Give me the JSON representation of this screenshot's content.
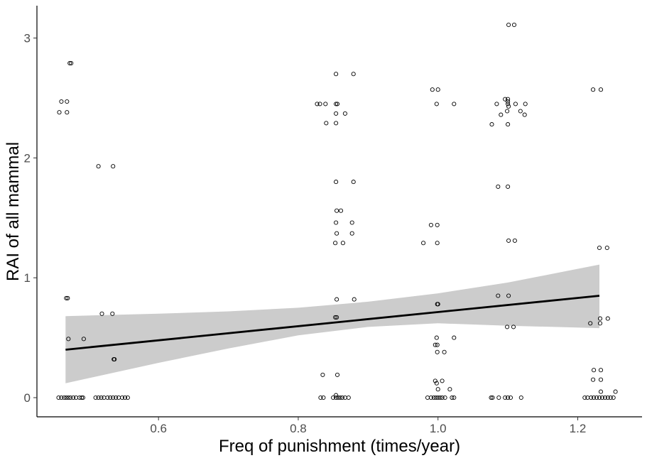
{
  "chart_data": {
    "type": "scatter",
    "title": "",
    "xlabel": "Freq of punishment (times/year)",
    "ylabel": "RAI of all mammal",
    "xlim": [
      0.426,
      1.292
    ],
    "ylim": [
      -0.16,
      3.27
    ],
    "x_ticks": [
      0.6,
      0.8,
      1.0,
      1.2
    ],
    "x_tick_labels": [
      "0.6",
      "0.8",
      "1.0",
      "1.2"
    ],
    "y_ticks": [
      0,
      1,
      2,
      3
    ],
    "y_tick_labels": [
      "0",
      "1",
      "2",
      "3"
    ],
    "grid": false,
    "legend": "none",
    "colors": {
      "point_stroke": "#000000",
      "line": "#000000",
      "band": "#cccccc",
      "axis": "#000000"
    },
    "points": [
      [
        0.458,
        2.38
      ],
      [
        0.461,
        2.47
      ],
      [
        0.469,
        2.47
      ],
      [
        0.469,
        2.38
      ],
      [
        0.473,
        2.79
      ],
      [
        0.475,
        2.79
      ],
      [
        0.468,
        0.83
      ],
      [
        0.47,
        0.83
      ],
      [
        0.471,
        0.49
      ],
      [
        0.493,
        0.49
      ],
      [
        0.457,
        0.0
      ],
      [
        0.461,
        0.0
      ],
      [
        0.465,
        0.0
      ],
      [
        0.468,
        0.0
      ],
      [
        0.471,
        0.0
      ],
      [
        0.474,
        0.0
      ],
      [
        0.478,
        0.0
      ],
      [
        0.482,
        0.0
      ],
      [
        0.487,
        0.0
      ],
      [
        0.49,
        0.0
      ],
      [
        0.492,
        0.0
      ],
      [
        0.514,
        1.93
      ],
      [
        0.535,
        1.93
      ],
      [
        0.519,
        0.7
      ],
      [
        0.534,
        0.7
      ],
      [
        0.536,
        0.32
      ],
      [
        0.537,
        0.32
      ],
      [
        0.51,
        0.0
      ],
      [
        0.514,
        0.0
      ],
      [
        0.518,
        0.0
      ],
      [
        0.522,
        0.0
      ],
      [
        0.527,
        0.0
      ],
      [
        0.531,
        0.0
      ],
      [
        0.535,
        0.0
      ],
      [
        0.539,
        0.0
      ],
      [
        0.543,
        0.0
      ],
      [
        0.548,
        0.0
      ],
      [
        0.552,
        0.0
      ],
      [
        0.556,
        0.0
      ],
      [
        0.827,
        2.45
      ],
      [
        0.831,
        2.45
      ],
      [
        0.839,
        2.45
      ],
      [
        0.854,
        2.45
      ],
      [
        0.856,
        2.45
      ],
      [
        0.854,
        2.7
      ],
      [
        0.879,
        2.7
      ],
      [
        0.84,
        2.29
      ],
      [
        0.854,
        2.29
      ],
      [
        0.854,
        2.37
      ],
      [
        0.867,
        2.37
      ],
      [
        0.854,
        1.8
      ],
      [
        0.879,
        1.8
      ],
      [
        0.855,
        1.56
      ],
      [
        0.861,
        1.56
      ],
      [
        0.854,
        1.46
      ],
      [
        0.877,
        1.46
      ],
      [
        0.855,
        1.37
      ],
      [
        0.877,
        1.37
      ],
      [
        0.853,
        1.29
      ],
      [
        0.864,
        1.29
      ],
      [
        0.855,
        0.82
      ],
      [
        0.88,
        0.82
      ],
      [
        0.853,
        0.67
      ],
      [
        0.855,
        0.67
      ],
      [
        0.835,
        0.19
      ],
      [
        0.856,
        0.19
      ],
      [
        0.832,
        0.0
      ],
      [
        0.836,
        0.0
      ],
      [
        0.85,
        0.0
      ],
      [
        0.854,
        0.0
      ],
      [
        0.857,
        0.0
      ],
      [
        0.86,
        0.0
      ],
      [
        0.863,
        0.0
      ],
      [
        0.867,
        0.0
      ],
      [
        0.872,
        0.0
      ],
      [
        0.854,
        0.02
      ],
      [
        0.992,
        2.57
      ],
      [
        1.0,
        2.57
      ],
      [
        0.998,
        2.45
      ],
      [
        1.023,
        2.45
      ],
      [
        0.99,
        1.44
      ],
      [
        0.999,
        1.44
      ],
      [
        0.979,
        1.29
      ],
      [
        0.999,
        1.29
      ],
      [
        0.999,
        0.78
      ],
      [
        1.0,
        0.78
      ],
      [
        0.998,
        0.5
      ],
      [
        1.023,
        0.5
      ],
      [
        0.996,
        0.44
      ],
      [
        0.999,
        0.44
      ],
      [
        0.999,
        0.38
      ],
      [
        1.009,
        0.38
      ],
      [
        0.996,
        0.14
      ],
      [
        1.006,
        0.14
      ],
      [
        0.998,
        0.12
      ],
      [
        1.0,
        0.07
      ],
      [
        1.017,
        0.07
      ],
      [
        0.985,
        0.0
      ],
      [
        0.99,
        0.0
      ],
      [
        0.994,
        0.0
      ],
      [
        0.997,
        0.0
      ],
      [
        1.0,
        0.0
      ],
      [
        1.003,
        0.0
      ],
      [
        1.006,
        0.0
      ],
      [
        1.01,
        0.0
      ],
      [
        1.02,
        0.0
      ],
      [
        1.023,
        0.0
      ],
      [
        1.101,
        3.11
      ],
      [
        1.109,
        3.11
      ],
      [
        1.084,
        2.45
      ],
      [
        1.096,
        2.49
      ],
      [
        1.1,
        2.49
      ],
      [
        1.1,
        2.47
      ],
      [
        1.1,
        2.45
      ],
      [
        1.101,
        2.43
      ],
      [
        1.111,
        2.45
      ],
      [
        1.125,
        2.45
      ],
      [
        1.099,
        2.39
      ],
      [
        1.09,
        2.36
      ],
      [
        1.118,
        2.39
      ],
      [
        1.124,
        2.36
      ],
      [
        1.077,
        2.28
      ],
      [
        1.1,
        2.28
      ],
      [
        1.086,
        1.76
      ],
      [
        1.1,
        1.76
      ],
      [
        1.101,
        1.31
      ],
      [
        1.11,
        1.31
      ],
      [
        1.086,
        0.85
      ],
      [
        1.101,
        0.85
      ],
      [
        1.099,
        0.59
      ],
      [
        1.108,
        0.59
      ],
      [
        1.076,
        0.0
      ],
      [
        1.078,
        0.0
      ],
      [
        1.087,
        0.0
      ],
      [
        1.096,
        0.0
      ],
      [
        1.1,
        0.0
      ],
      [
        1.104,
        0.0
      ],
      [
        1.119,
        0.0
      ],
      [
        1.222,
        2.57
      ],
      [
        1.233,
        2.57
      ],
      [
        1.231,
        1.25
      ],
      [
        1.242,
        1.25
      ],
      [
        1.218,
        0.62
      ],
      [
        1.232,
        0.62
      ],
      [
        1.232,
        0.66
      ],
      [
        1.243,
        0.66
      ],
      [
        1.223,
        0.23
      ],
      [
        1.233,
        0.23
      ],
      [
        1.222,
        0.15
      ],
      [
        1.233,
        0.15
      ],
      [
        1.233,
        0.05
      ],
      [
        1.254,
        0.05
      ],
      [
        1.21,
        0.0
      ],
      [
        1.214,
        0.0
      ],
      [
        1.219,
        0.0
      ],
      [
        1.223,
        0.0
      ],
      [
        1.227,
        0.0
      ],
      [
        1.231,
        0.0
      ],
      [
        1.235,
        0.0
      ],
      [
        1.239,
        0.0
      ],
      [
        1.243,
        0.0
      ],
      [
        1.247,
        0.0
      ],
      [
        1.251,
        0.0
      ]
    ],
    "fit_line": {
      "x": [
        0.467,
        1.231
      ],
      "y": [
        0.4,
        0.85
      ]
    },
    "confidence_band": {
      "x": [
        0.467,
        0.6,
        0.7,
        0.8,
        0.9,
        1.0,
        1.1,
        1.231
      ],
      "lower": [
        0.12,
        0.29,
        0.41,
        0.52,
        0.59,
        0.62,
        0.6,
        0.58
      ],
      "upper": [
        0.68,
        0.7,
        0.72,
        0.75,
        0.8,
        0.87,
        0.96,
        1.11
      ]
    }
  }
}
